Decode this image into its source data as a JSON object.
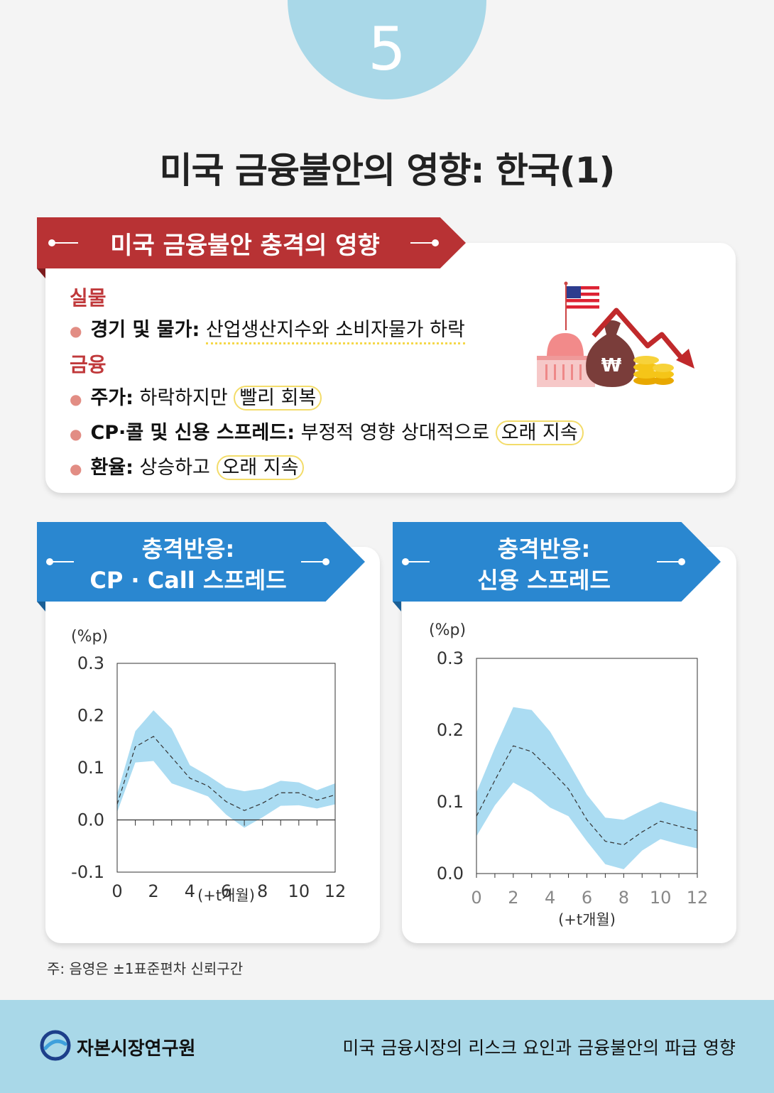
{
  "page_number": "5",
  "title": "미국 금융불안의 영향: 한국(1)",
  "impact_box": {
    "banner": "미국 금융불안 충격의 영향",
    "real_label": "실물",
    "real_items": [
      {
        "head": "경기 및 물가:",
        "body": "산업생산지수와 소비자물가 하락",
        "highlight": ""
      }
    ],
    "finance_label": "금융",
    "finance_items": [
      {
        "head": "주가:",
        "body": "하락하지만",
        "highlight": "빨리 회복"
      },
      {
        "head": "CP·콜 및 신용 스프레드:",
        "body": "부정적 영향 상대적으로",
        "highlight": "오래 지속"
      },
      {
        "head": "환율:",
        "body": "상승하고",
        "highlight": "오래 지속"
      }
    ],
    "won_symbol": "₩"
  },
  "chart_panels": [
    {
      "banner_line1": "충격반응:",
      "banner_line2": "CP · Call 스프레드"
    },
    {
      "banner_line1": "충격반응:",
      "banner_line2": "신용 스프레드"
    }
  ],
  "chart_data": [
    {
      "type": "line",
      "title": "충격반응: CP · Call 스프레드",
      "unit_label": "(%p)",
      "xlabel": "(+t개월)",
      "x": [
        0,
        1,
        2,
        3,
        4,
        5,
        6,
        7,
        8,
        9,
        10,
        11,
        12
      ],
      "x_ticks": [
        0,
        2,
        4,
        6,
        8,
        10,
        12
      ],
      "y_ticks": [
        -0.1,
        0.0,
        0.1,
        0.2,
        0.3
      ],
      "y_tick_labels": [
        "-0.1",
        "0.0",
        "0.1",
        "0.2",
        "0.3"
      ],
      "ylim": [
        -0.1,
        0.3
      ],
      "xlim": [
        0,
        12
      ],
      "series": [
        {
          "values": [
            0.03,
            0.14,
            0.16,
            0.12,
            0.08,
            0.065,
            0.035,
            0.018,
            0.032,
            0.052,
            0.052,
            0.038,
            0.048
          ]
        }
      ],
      "band_upper": [
        0.05,
        0.17,
        0.21,
        0.175,
        0.105,
        0.085,
        0.062,
        0.055,
        0.06,
        0.075,
        0.072,
        0.057,
        0.07
      ],
      "band_lower": [
        0.015,
        0.11,
        0.113,
        0.07,
        0.058,
        0.045,
        0.01,
        -0.015,
        0.005,
        0.027,
        0.028,
        0.022,
        0.03
      ],
      "band_color": "#abdcf2"
    },
    {
      "type": "line",
      "title": "충격반응: 신용 스프레드",
      "unit_label": "(%p)",
      "xlabel": "(+t개월)",
      "x": [
        0,
        1,
        2,
        3,
        4,
        5,
        6,
        7,
        8,
        9,
        10,
        11,
        12
      ],
      "x_ticks": [
        0,
        2,
        4,
        6,
        8,
        10,
        12
      ],
      "y_ticks": [
        0.0,
        0.1,
        0.2,
        0.3
      ],
      "y_tick_labels": [
        "0.0",
        "0.1",
        "0.2",
        "0.3"
      ],
      "ylim": [
        0.0,
        0.3
      ],
      "xlim": [
        0,
        12
      ],
      "series": [
        {
          "values": [
            0.08,
            0.13,
            0.178,
            0.17,
            0.145,
            0.118,
            0.075,
            0.045,
            0.04,
            0.058,
            0.073,
            0.066,
            0.06
          ]
        }
      ],
      "band_upper": [
        0.113,
        0.175,
        0.232,
        0.228,
        0.198,
        0.155,
        0.11,
        0.078,
        0.075,
        0.088,
        0.1,
        0.093,
        0.086
      ],
      "band_lower": [
        0.052,
        0.095,
        0.127,
        0.113,
        0.092,
        0.08,
        0.045,
        0.013,
        0.006,
        0.032,
        0.048,
        0.041,
        0.035
      ],
      "band_color": "#abdcf2"
    }
  ],
  "note": "주: 음영은 ±1표준편차 신뢰구간",
  "footer": {
    "org": "자본시장연구원",
    "subtitle": "미국 금융시장의 리스크 요인과 금융불안의 파급 영향"
  }
}
